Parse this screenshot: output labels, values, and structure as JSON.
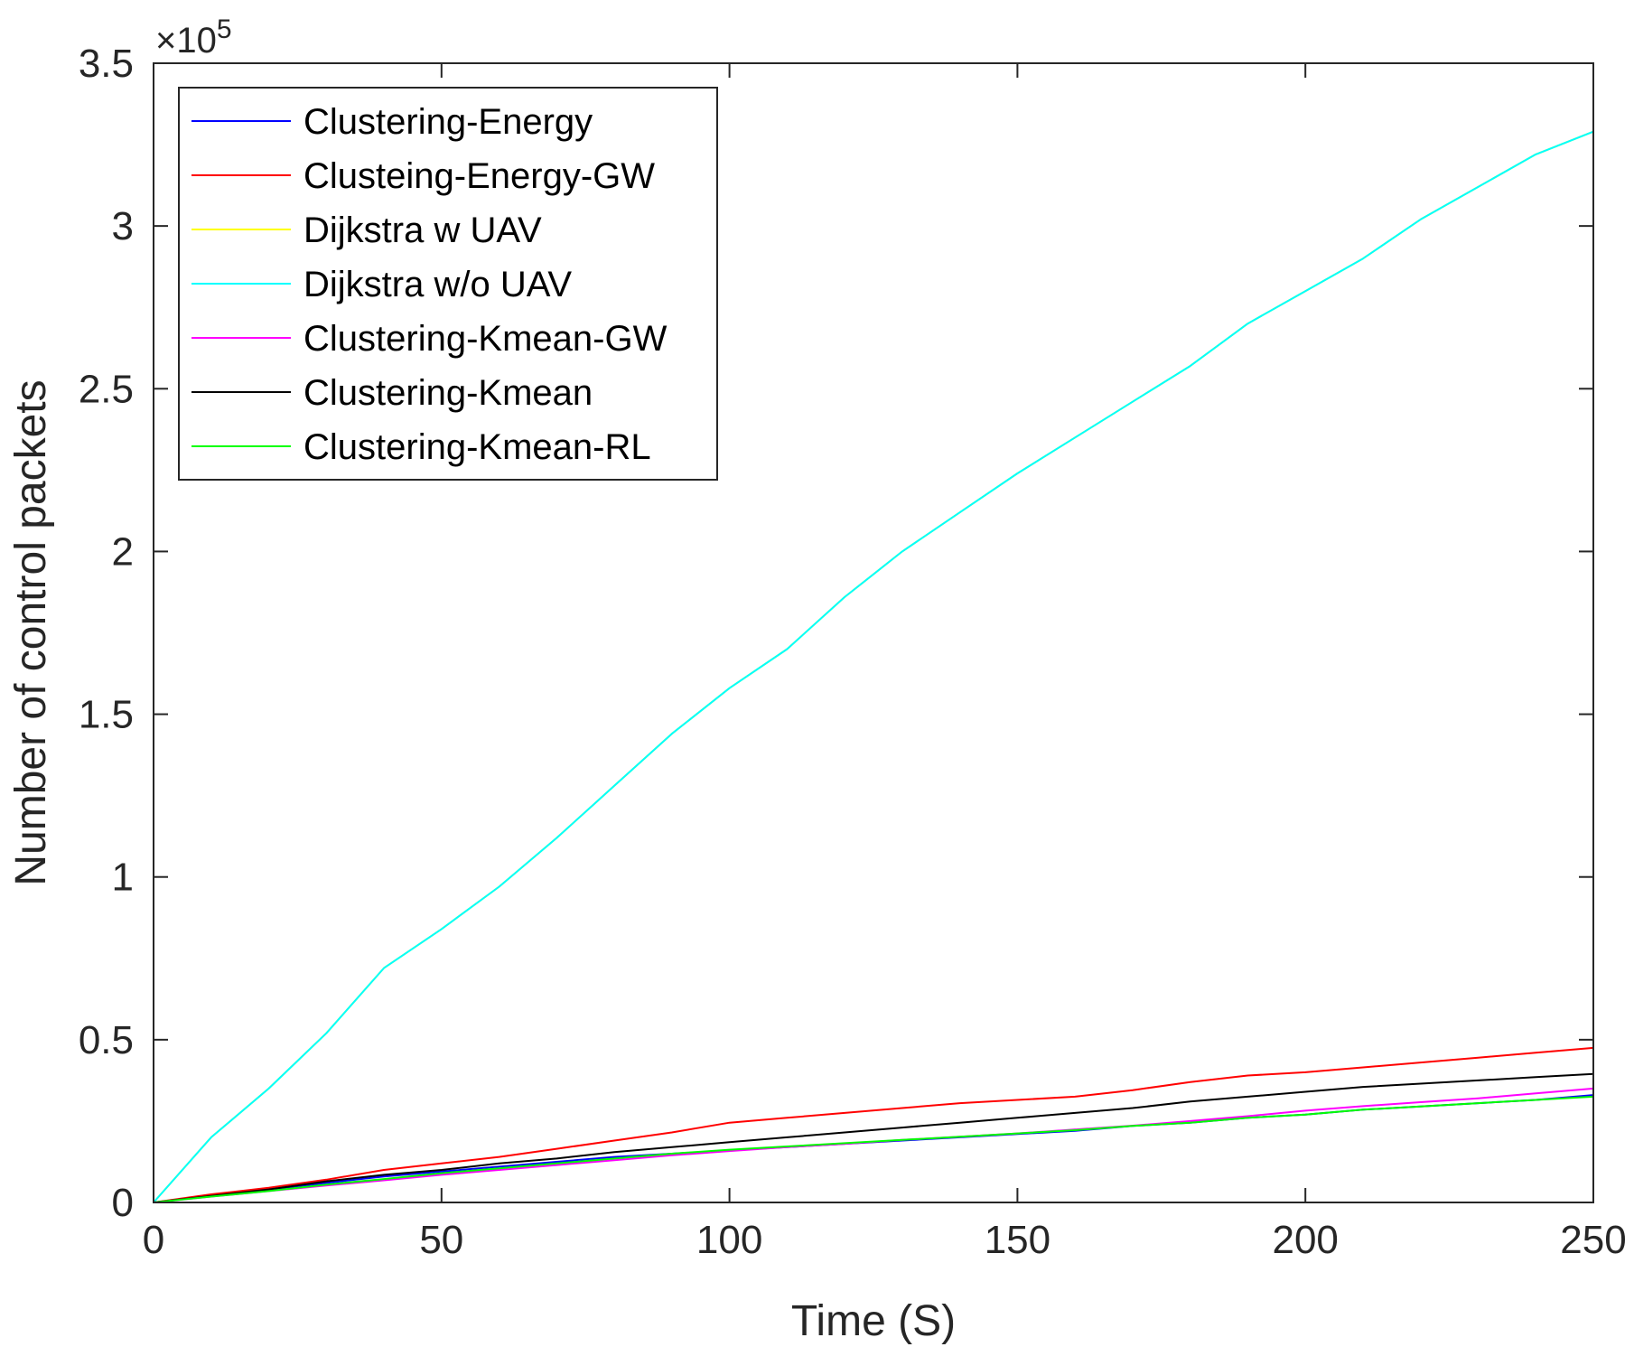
{
  "chart_data": {
    "type": "line",
    "title": "",
    "xlabel": "Time (S)",
    "ylabel": "Number of control packets",
    "y_multiplier_base": "×10",
    "y_multiplier_exponent": "5",
    "xlim": [
      0,
      250
    ],
    "ylim": [
      0,
      3.5
    ],
    "x_ticks": [
      0,
      50,
      100,
      150,
      200,
      250
    ],
    "x_tick_labels": [
      "0",
      "50",
      "100",
      "150",
      "200",
      "250"
    ],
    "y_ticks": [
      0,
      0.5,
      1,
      1.5,
      2,
      2.5,
      3,
      3.5
    ],
    "y_tick_labels": [
      "0",
      "0.5",
      "1",
      "1.5",
      "2",
      "2.5",
      "3",
      "3.5"
    ],
    "grid": false,
    "legend_position": "top-left",
    "x": [
      0,
      10,
      20,
      30,
      40,
      50,
      60,
      70,
      80,
      90,
      100,
      110,
      120,
      130,
      140,
      150,
      160,
      170,
      180,
      190,
      200,
      210,
      220,
      230,
      240,
      250
    ],
    "series": [
      {
        "name": "Clustering-Energy",
        "color": "#0000ff",
        "values": [
          0,
          0.02,
          0.04,
          0.06,
          0.08,
          0.095,
          0.11,
          0.125,
          0.14,
          0.15,
          0.16,
          0.17,
          0.18,
          0.19,
          0.2,
          0.21,
          0.22,
          0.235,
          0.245,
          0.26,
          0.27,
          0.285,
          0.295,
          0.305,
          0.315,
          0.33
        ]
      },
      {
        "name": "Clusteing-Energy-GW",
        "color": "#ff0000",
        "values": [
          0,
          0.025,
          0.045,
          0.07,
          0.1,
          0.12,
          0.14,
          0.165,
          0.19,
          0.215,
          0.245,
          0.26,
          0.275,
          0.29,
          0.305,
          0.315,
          0.325,
          0.345,
          0.37,
          0.39,
          0.4,
          0.415,
          0.43,
          0.445,
          0.46,
          0.475
        ]
      },
      {
        "name": "Dijkstra w UAV",
        "color": "#ffff00",
        "values": [
          0,
          0.2,
          0.35,
          0.52,
          0.72,
          0.84,
          0.97,
          1.12,
          1.28,
          1.44,
          1.58,
          1.7,
          1.86,
          2.0,
          2.12,
          2.24,
          2.35,
          2.46,
          2.57,
          2.7,
          2.8,
          2.9,
          3.02,
          3.12,
          3.22,
          3.29
        ]
      },
      {
        "name": "Dijkstra w/o UAV",
        "color": "#00ffff",
        "values": [
          0,
          0.2,
          0.35,
          0.52,
          0.72,
          0.84,
          0.97,
          1.12,
          1.28,
          1.44,
          1.58,
          1.7,
          1.86,
          2.0,
          2.12,
          2.24,
          2.35,
          2.46,
          2.57,
          2.7,
          2.8,
          2.9,
          3.02,
          3.12,
          3.22,
          3.29
        ]
      },
      {
        "name": "Clustering-Kmean-GW",
        "color": "#ff00ff",
        "values": [
          0,
          0.018,
          0.035,
          0.052,
          0.068,
          0.085,
          0.1,
          0.115,
          0.13,
          0.145,
          0.158,
          0.17,
          0.18,
          0.192,
          0.202,
          0.212,
          0.224,
          0.236,
          0.25,
          0.265,
          0.282,
          0.296,
          0.308,
          0.32,
          0.335,
          0.35
        ]
      },
      {
        "name": "Clustering-Kmean",
        "color": "#000000",
        "values": [
          0,
          0.02,
          0.04,
          0.065,
          0.085,
          0.1,
          0.12,
          0.135,
          0.155,
          0.17,
          0.185,
          0.2,
          0.215,
          0.23,
          0.245,
          0.26,
          0.275,
          0.29,
          0.31,
          0.325,
          0.34,
          0.355,
          0.365,
          0.375,
          0.385,
          0.395
        ]
      },
      {
        "name": "Clustering-Kmean-RL",
        "color": "#00ff00",
        "values": [
          0,
          0.018,
          0.035,
          0.055,
          0.072,
          0.09,
          0.105,
          0.12,
          0.135,
          0.15,
          0.162,
          0.172,
          0.182,
          0.192,
          0.202,
          0.212,
          0.222,
          0.235,
          0.245,
          0.26,
          0.27,
          0.285,
          0.295,
          0.305,
          0.315,
          0.325
        ]
      }
    ]
  }
}
